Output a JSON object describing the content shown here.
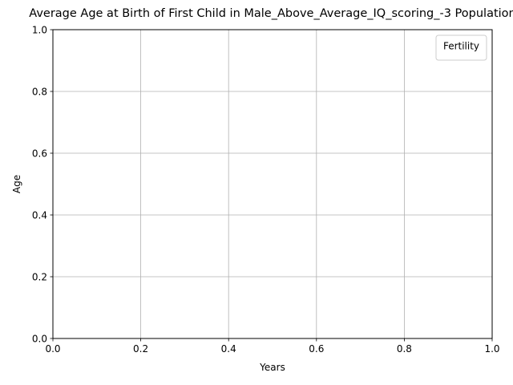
{
  "chart_data": {
    "type": "line",
    "title": "Average Age at Birth of First Child in Male_Above_Average_IQ_scoring_-3 Population",
    "xlabel": "Years",
    "ylabel": "Age",
    "xlim": [
      0.0,
      1.0
    ],
    "ylim": [
      0.0,
      1.0
    ],
    "xticks": [
      "0.0",
      "0.2",
      "0.4",
      "0.6",
      "0.8",
      "1.0"
    ],
    "yticks": [
      "0.0",
      "0.2",
      "0.4",
      "0.6",
      "0.8",
      "1.0"
    ],
    "grid": true,
    "legend": {
      "title": "Fertility",
      "placement": "top-right",
      "entries": []
    },
    "series": []
  },
  "colors": {
    "grid": "#b0b0b0",
    "axes": "#000000",
    "background": "#ffffff"
  }
}
